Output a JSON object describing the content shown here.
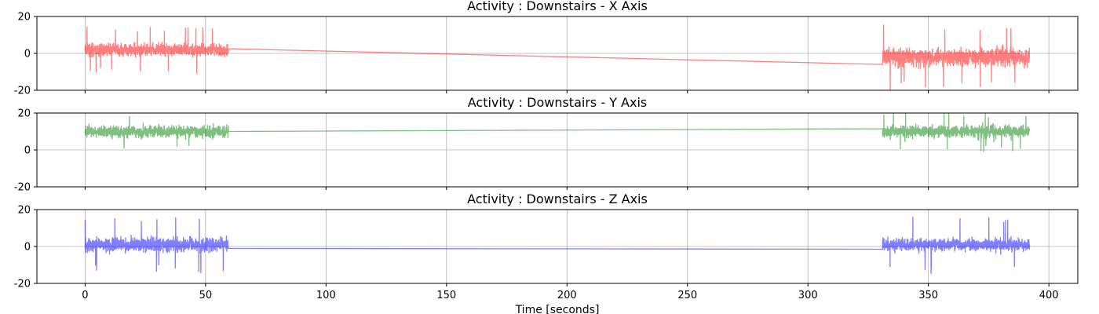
{
  "chart_data": [
    {
      "type": "line",
      "title": "Activity : Downstairs - X Axis",
      "color": "#ff0000",
      "xlim": [
        -20,
        412
      ],
      "ylim": [
        -20,
        20
      ],
      "yticks": [
        -20,
        0,
        20
      ],
      "grid": true,
      "x_tick_labels_visible": false,
      "segments": [
        {
          "t_start": 0,
          "t_end": 59.5,
          "mean": 2,
          "amplitude": 5,
          "peak": 14
        },
        {
          "t_start": 331,
          "t_end": 392,
          "mean": -2,
          "amplitude": 7,
          "peak": 18
        }
      ],
      "connectors": [
        {
          "from": [
            59.5,
            2.5
          ],
          "to": [
            331,
            -6
          ]
        }
      ]
    },
    {
      "type": "line",
      "title": "Activity : Downstairs - Y Axis",
      "color": "#008000",
      "xlim": [
        -20,
        412
      ],
      "ylim": [
        -20,
        20
      ],
      "yticks": [
        -20,
        0,
        20
      ],
      "grid": true,
      "x_tick_labels_visible": false,
      "segments": [
        {
          "t_start": 0,
          "t_end": 59.5,
          "mean": 10,
          "amplitude": 5,
          "peak": 10
        },
        {
          "t_start": 331,
          "t_end": 392,
          "mean": 10,
          "amplitude": 5,
          "peak": 11
        }
      ],
      "connectors": [
        {
          "from": [
            59.5,
            10
          ],
          "to": [
            331,
            11.5
          ]
        }
      ]
    },
    {
      "type": "line",
      "title": "Activity : Downstairs - Z Axis",
      "color": "#0000ff",
      "xlim": [
        -20,
        412
      ],
      "ylim": [
        -20,
        20
      ],
      "yticks": [
        -20,
        0,
        20
      ],
      "grid": true,
      "x_tick_labels_visible": true,
      "xticks": [
        0,
        50,
        100,
        150,
        200,
        250,
        300,
        350,
        400
      ],
      "xlabel": "Time [seconds]",
      "segments": [
        {
          "t_start": 0,
          "t_end": 59.5,
          "mean": 1,
          "amplitude": 6,
          "peak": 16
        },
        {
          "t_start": 331,
          "t_end": 392,
          "mean": 1,
          "amplitude": 5,
          "peak": 16
        }
      ],
      "connectors": [
        {
          "from": [
            59.5,
            -1
          ],
          "to": [
            331,
            -1.5
          ]
        }
      ]
    }
  ]
}
